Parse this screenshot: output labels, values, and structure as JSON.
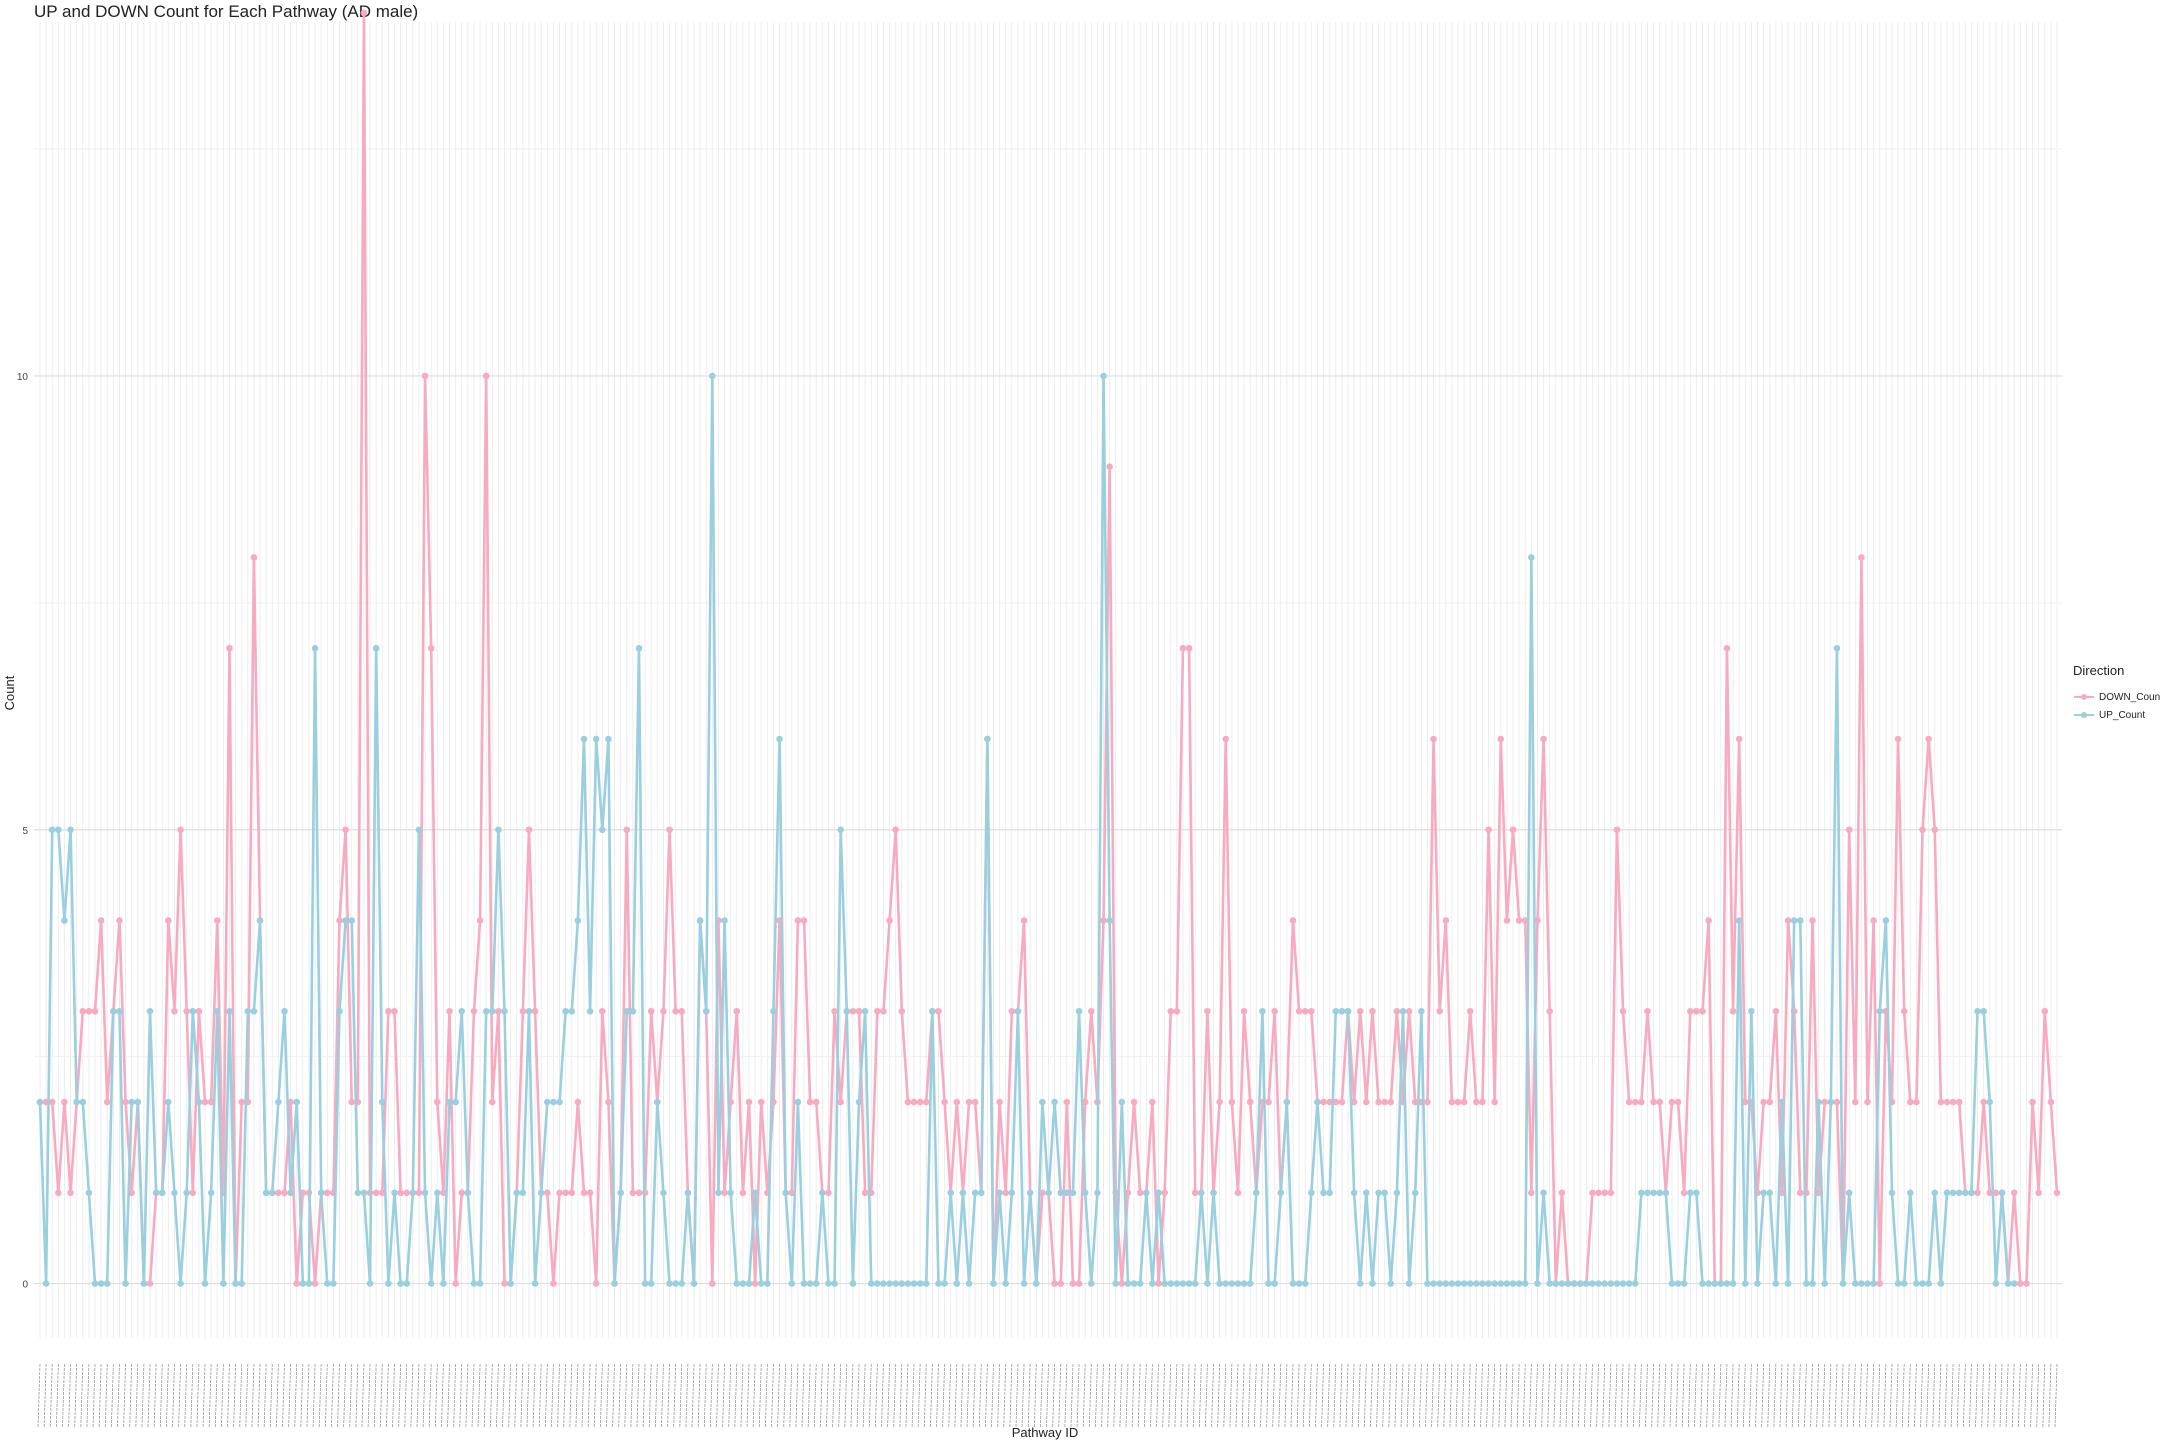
{
  "chart_data": {
    "type": "line",
    "title": "UP and DOWN Count for Each Pathway (AD male)",
    "xlabel": "Pathway ID",
    "ylabel": "Count",
    "yticks": [
      0,
      5,
      10
    ],
    "ylim": [
      -0.6,
      13.9
    ],
    "grid": true,
    "legend": {
      "title": "Direction",
      "placement": "right"
    },
    "series": [
      {
        "name": "DOWN_Count",
        "color": "#f7aac0",
        "values": [
          2,
          2,
          2,
          1,
          2,
          1,
          2,
          3,
          3,
          3,
          4,
          2,
          3,
          4,
          2,
          1,
          2,
          0,
          0,
          1,
          1,
          4,
          3,
          5,
          3,
          1,
          3,
          2,
          2,
          4,
          1,
          7,
          0,
          2,
          2,
          8,
          4,
          1,
          1,
          1,
          1,
          2,
          0,
          1,
          1,
          0,
          1,
          1,
          1,
          4,
          5,
          2,
          2,
          14,
          1,
          1,
          1,
          3,
          3,
          1,
          1,
          1,
          1,
          10,
          7,
          2,
          1,
          3,
          0,
          1,
          1,
          3,
          4,
          10,
          2,
          3,
          0,
          0,
          1,
          3,
          5,
          3,
          1,
          1,
          0,
          1,
          1,
          1,
          2,
          1,
          1,
          0,
          3,
          2,
          0,
          1,
          5,
          1,
          1,
          1,
          3,
          2,
          3,
          5,
          3,
          3,
          1,
          0,
          4,
          3,
          0,
          4,
          1,
          2,
          3,
          1,
          2,
          0,
          2,
          1,
          2,
          4,
          1,
          1,
          4,
          4,
          2,
          2,
          1,
          1,
          3,
          2,
          3,
          3,
          3,
          1,
          1,
          3,
          3,
          4,
          5,
          3,
          2,
          2,
          2,
          2,
          3,
          3,
          2,
          1,
          2,
          1,
          2,
          2,
          1,
          6,
          0,
          2,
          1,
          3,
          3,
          4,
          1,
          0,
          1,
          1,
          0,
          0,
          2,
          0,
          0,
          2,
          3,
          2,
          4,
          9,
          1,
          0,
          1,
          2,
          1,
          1,
          2,
          0,
          1,
          3,
          3,
          7,
          7,
          1,
          1,
          3,
          1,
          2,
          6,
          2,
          1,
          3,
          2,
          1,
          2,
          2,
          3,
          1,
          2,
          4,
          3,
          3,
          3,
          2,
          2,
          2,
          2,
          2,
          3,
          2,
          3,
          2,
          3,
          2,
          2,
          2,
          3,
          2,
          3,
          2,
          2,
          2,
          6,
          3,
          4,
          2,
          2,
          2,
          3,
          2,
          2,
          5,
          2,
          6,
          4,
          5,
          4,
          4,
          1,
          4,
          6,
          3,
          0,
          1,
          0,
          0,
          0,
          0,
          1,
          1,
          1,
          1,
          5,
          3,
          2,
          2,
          2,
          3,
          2,
          2,
          1,
          2,
          2,
          1,
          3,
          3,
          3,
          4,
          0,
          0,
          7,
          3,
          6,
          2,
          2,
          1,
          2,
          2,
          3,
          1,
          4,
          3,
          1,
          1,
          4,
          1,
          2,
          2,
          2,
          0,
          5,
          2,
          8,
          2,
          4,
          0,
          3,
          2,
          6,
          3,
          2,
          2,
          5,
          6,
          5,
          2,
          2,
          2,
          2,
          1,
          1,
          1,
          2,
          1,
          1,
          1,
          0,
          1,
          0,
          0,
          2,
          1,
          3,
          2,
          1
        ]
      },
      {
        "name": "UP_Count",
        "color": "#9acfdf",
        "values": [
          2,
          0,
          5,
          5,
          4,
          5,
          2,
          2,
          1,
          0,
          0,
          0,
          3,
          3,
          0,
          2,
          2,
          0,
          3,
          1,
          1,
          2,
          1,
          0,
          1,
          3,
          2,
          0,
          1,
          3,
          0,
          3,
          0,
          0,
          3,
          3,
          4,
          1,
          1,
          2,
          3,
          1,
          2,
          0,
          0,
          7,
          1,
          0,
          0,
          3,
          4,
          4,
          1,
          1,
          0,
          7,
          2,
          0,
          1,
          0,
          0,
          1,
          5,
          1,
          0,
          1,
          0,
          2,
          2,
          3,
          1,
          0,
          0,
          3,
          3,
          5,
          3,
          0,
          1,
          1,
          3,
          0,
          1,
          2,
          2,
          2,
          3,
          3,
          4,
          6,
          3,
          6,
          5,
          6,
          0,
          1,
          3,
          3,
          7,
          0,
          0,
          2,
          1,
          0,
          0,
          0,
          1,
          0,
          4,
          3,
          10,
          1,
          4,
          1,
          0,
          0,
          0,
          1,
          0,
          0,
          3,
          6,
          1,
          0,
          2,
          0,
          0,
          0,
          1,
          0,
          0,
          5,
          3,
          0,
          2,
          3,
          0,
          0,
          0,
          0,
          0,
          0,
          0,
          0,
          0,
          0,
          3,
          0,
          0,
          1,
          0,
          1,
          0,
          1,
          1,
          6,
          0,
          1,
          0,
          1,
          3,
          0,
          1,
          0,
          2,
          1,
          2,
          1,
          1,
          1,
          3,
          1,
          0,
          1,
          10,
          4,
          0,
          2,
          0,
          0,
          0,
          1,
          0,
          1,
          0,
          0,
          0,
          0,
          0,
          0,
          1,
          0,
          1,
          0,
          0,
          0,
          0,
          0,
          0,
          1,
          3,
          0,
          0,
          1,
          2,
          0,
          0,
          0,
          1,
          2,
          1,
          1,
          3,
          3,
          3,
          1,
          0,
          1,
          0,
          1,
          1,
          0,
          1,
          3,
          0,
          1,
          3,
          0,
          0,
          0,
          0,
          0,
          0,
          0,
          0,
          0,
          0,
          0,
          0,
          0,
          0,
          0,
          0,
          0,
          8,
          0,
          1,
          0,
          0,
          0,
          0,
          0,
          0,
          0,
          0,
          0,
          0,
          0,
          0,
          0,
          0,
          0,
          1,
          1,
          1,
          1,
          1,
          0,
          0,
          0,
          1,
          1,
          0,
          0,
          0,
          0,
          0,
          0,
          4,
          0,
          3,
          0,
          1,
          1,
          0,
          2,
          0,
          4,
          4,
          0,
          0,
          2,
          0,
          2,
          7,
          0,
          1,
          0,
          0,
          0,
          0,
          3,
          4,
          1,
          0,
          0,
          1,
          0,
          0,
          0,
          1,
          0,
          1,
          1,
          1,
          1,
          1,
          3,
          3,
          2,
          0,
          1,
          0,
          0
        ]
      }
    ]
  }
}
